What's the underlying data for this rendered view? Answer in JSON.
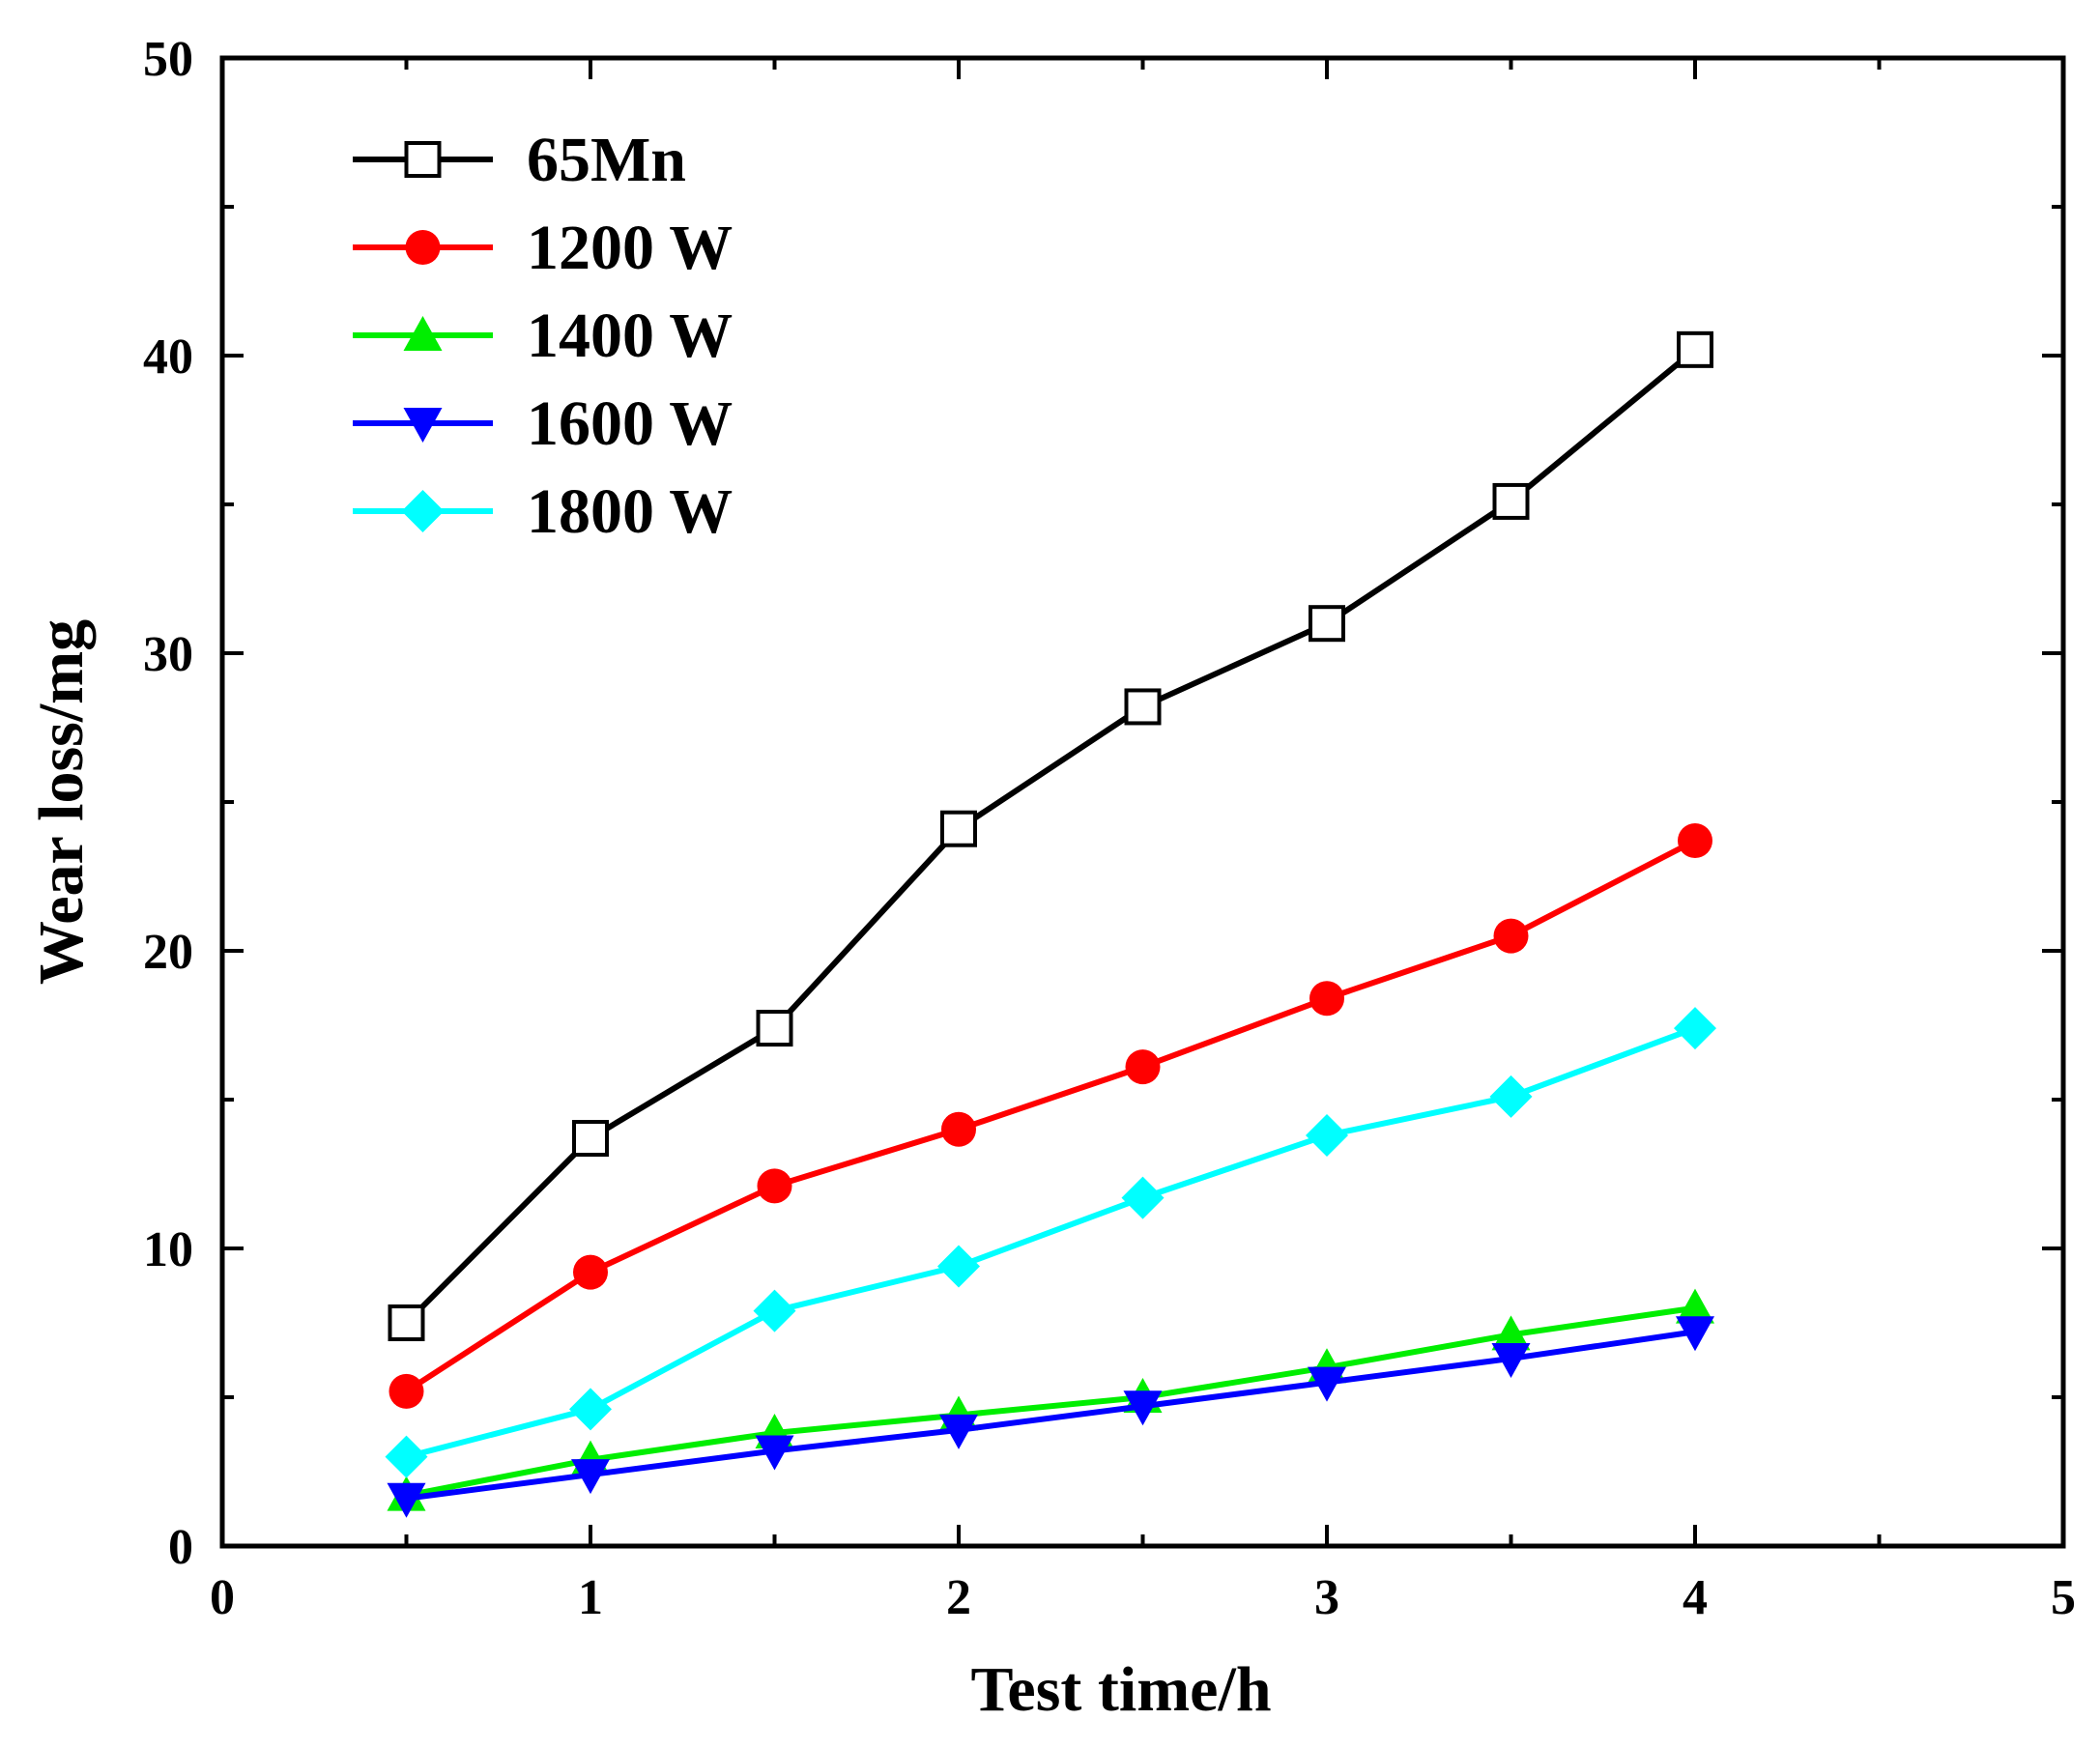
{
  "chart_data": {
    "type": "line",
    "title": "",
    "xlabel": "Test time/h",
    "ylabel": "Wear loss/mg",
    "xlim": [
      0,
      5
    ],
    "ylim": [
      0,
      50
    ],
    "x_ticks": [
      0,
      1,
      2,
      3,
      4,
      5
    ],
    "y_ticks": [
      0,
      10,
      20,
      30,
      40,
      50
    ],
    "grid": false,
    "legend_position": "top-left",
    "x": [
      0.5,
      1,
      1.5,
      2,
      2.5,
      3,
      3.5,
      4
    ],
    "series": [
      {
        "name": "65Mn",
        "color": "#000000",
        "marker": "open-square",
        "values": [
          7.5,
          13.7,
          17.4,
          24.1,
          28.2,
          31.0,
          35.1,
          40.2
        ]
      },
      {
        "name": "1200 W",
        "color": "#ff0000",
        "marker": "circle",
        "values": [
          5.2,
          9.2,
          12.1,
          14.0,
          16.1,
          18.4,
          20.5,
          23.7
        ]
      },
      {
        "name": "1400 W",
        "color": "#00ee00",
        "marker": "triangle-up",
        "values": [
          1.7,
          2.9,
          3.8,
          4.4,
          5.0,
          6.0,
          7.1,
          8.0
        ]
      },
      {
        "name": "1600 W",
        "color": "#0000ff",
        "marker": "triangle-down",
        "values": [
          1.6,
          2.4,
          3.2,
          3.9,
          4.7,
          5.5,
          6.3,
          7.2
        ]
      },
      {
        "name": "1800 W",
        "color": "#00ffff",
        "marker": "diamond",
        "values": [
          3.0,
          4.6,
          7.9,
          9.4,
          11.7,
          13.8,
          15.1,
          17.4
        ]
      }
    ]
  }
}
